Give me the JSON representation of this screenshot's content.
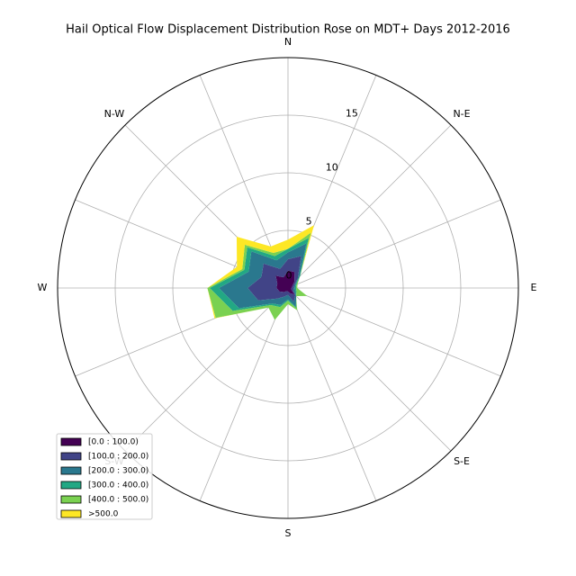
{
  "chart_data": {
    "type": "windrose",
    "title": "Hail Optical Flow Displacement Distribution Rose on MDT+ Days 2012-2016",
    "categories": [
      "N",
      null,
      "N-E",
      null,
      "E",
      null,
      "S-E",
      null,
      "S",
      null,
      "S-W",
      null,
      "W",
      null,
      "N-W",
      null
    ],
    "ylim": [
      0,
      20
    ],
    "yticks": [
      0,
      5,
      10,
      15
    ],
    "grid": true,
    "legend": "lower left",
    "series": [
      {
        "name": "[0.0 : 100.0)",
        "color": "#440154",
        "values": [
          1.5,
          1.5,
          0.8,
          0.4,
          0.3,
          0.3,
          0.8,
          0.5,
          0.3,
          0.3,
          0.5,
          0.8,
          1.0,
          1.0,
          1.5,
          1.0
        ]
      },
      {
        "name": "[100.0 : 200.0)",
        "color": "#414487",
        "values": [
          1.0,
          1.5,
          0.4,
          0.2,
          0.2,
          0.2,
          0.1,
          0.8,
          0.3,
          0.5,
          0.8,
          2.0,
          2.5,
          1.5,
          1.5,
          0.8
        ]
      },
      {
        "name": "[200.0 : 300.0)",
        "color": "#2a788e",
        "values": [
          0.6,
          1.2,
          0.2,
          0.1,
          0.1,
          0.2,
          0.1,
          0.5,
          0.4,
          0.8,
          0.6,
          1.8,
          2.5,
          1.2,
          1.5,
          0.8
        ]
      },
      {
        "name": "[300.0 : 400.0)",
        "color": "#22a884",
        "values": [
          0.3,
          0.5,
          0.1,
          0.1,
          0.1,
          0.1,
          0.0,
          0.1,
          0.1,
          0.2,
          0.2,
          0.6,
          0.8,
          0.4,
          0.5,
          0.4
        ]
      },
      {
        "name": "[400.0 : 500.0)",
        "color": "#7ad151",
        "values": [
          0.0,
          0.5,
          0.0,
          0.1,
          0.1,
          1.0,
          0.0,
          0.2,
          0.3,
          1.2,
          0.3,
          1.6,
          0.2,
          0.2,
          0.3,
          0.3
        ]
      },
      {
        "name": ">500.0",
        "color": "#fde725",
        "values": [
          0.8,
          0.7,
          0.0,
          0.0,
          0.0,
          0.0,
          0.0,
          0.0,
          0.0,
          0.0,
          0.0,
          0.1,
          0.0,
          0.5,
          1.0,
          0.6
        ]
      }
    ]
  }
}
